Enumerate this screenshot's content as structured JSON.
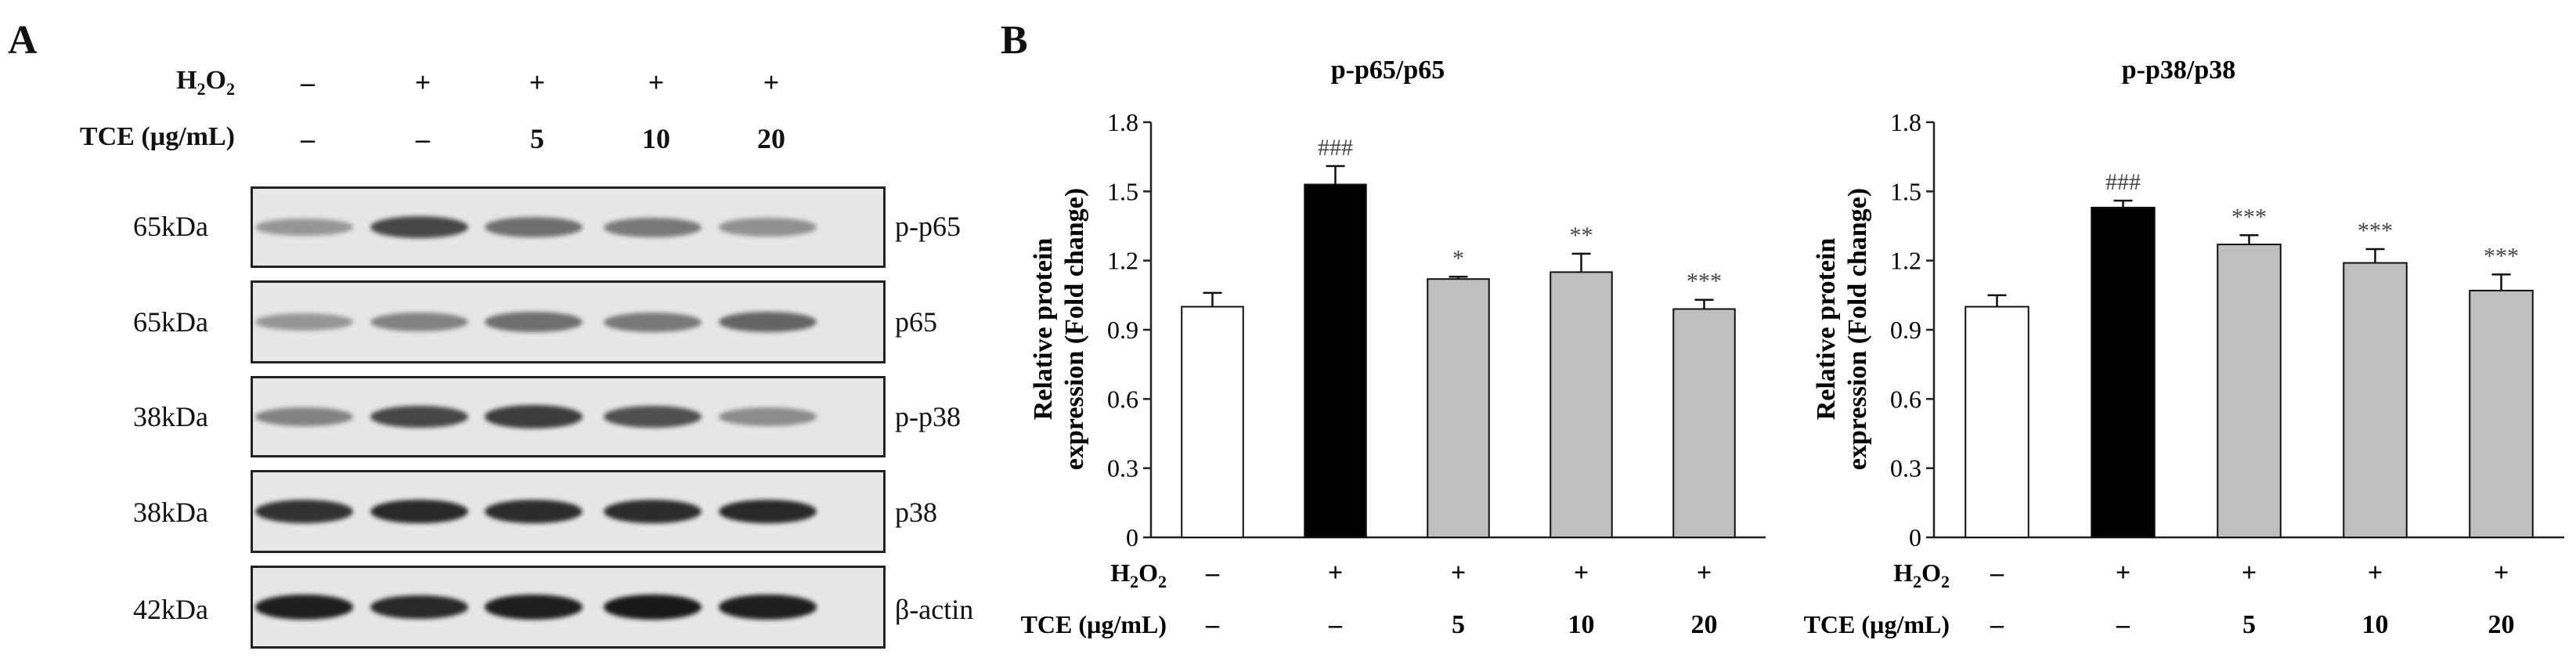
{
  "panel_a": {
    "letter": "A",
    "header_rows": [
      {
        "label": "H₂O₂",
        "label_main": "H",
        "label_sub": "2",
        "label_main2": "O",
        "label_sub2": "2",
        "values": [
          "–",
          "+",
          "+",
          "+",
          "+"
        ]
      },
      {
        "label": "TCE (µg/mL)",
        "values": [
          "–",
          "–",
          "5",
          "10",
          "20"
        ]
      }
    ],
    "blots": [
      {
        "kda": "65kDa",
        "protein": "p-p65",
        "band_intensity": [
          0.35,
          0.75,
          0.55,
          0.5,
          0.38
        ]
      },
      {
        "kda": "65kDa",
        "protein": "p65",
        "band_intensity": [
          0.35,
          0.45,
          0.55,
          0.5,
          0.6
        ]
      },
      {
        "kda": "38kDa",
        "protein": "p-p38",
        "band_intensity": [
          0.45,
          0.75,
          0.8,
          0.7,
          0.4
        ]
      },
      {
        "kda": "38kDa",
        "protein": "p38",
        "band_intensity": [
          0.85,
          0.9,
          0.88,
          0.88,
          0.9
        ]
      },
      {
        "kda": "42kDa",
        "protein": "β-actin",
        "band_intensity": [
          0.95,
          0.9,
          0.95,
          0.98,
          0.95
        ]
      }
    ]
  },
  "panel_b": {
    "letter": "B"
  },
  "chart_data": [
    {
      "type": "bar",
      "title": "p-p65/p65",
      "ylabel_line1": "Relative protein",
      "ylabel_line2": "expression (Fold change)",
      "ylim": [
        0,
        1.8
      ],
      "yticks": [
        "0",
        "0.3",
        "0.6",
        "0.9",
        "1.2",
        "1.5",
        "1.8"
      ],
      "values": [
        1.0,
        1.53,
        1.12,
        1.15,
        0.99
      ],
      "errors": [
        0.06,
        0.08,
        0.01,
        0.08,
        0.04
      ],
      "bar_colors": [
        "#ffffff",
        "#000000",
        "#bfbfbf",
        "#bfbfbf",
        "#bfbfbf"
      ],
      "annotations": [
        "",
        "###",
        "*",
        "**",
        "***"
      ],
      "row_labels": [
        "H₂O₂",
        "TCE (µg/mL)"
      ],
      "h2o2": [
        "–",
        "+",
        "+",
        "+",
        "+"
      ],
      "tce": [
        "–",
        "–",
        "5",
        "10",
        "20"
      ]
    },
    {
      "type": "bar",
      "title": "p-p38/p38",
      "ylabel_line1": "Relative protein",
      "ylabel_line2": "expression (Fold change)",
      "ylim": [
        0,
        1.8
      ],
      "yticks": [
        "0",
        "0.3",
        "0.6",
        "0.9",
        "1.2",
        "1.5",
        "1.8"
      ],
      "values": [
        1.0,
        1.43,
        1.27,
        1.19,
        1.07
      ],
      "errors": [
        0.05,
        0.03,
        0.04,
        0.06,
        0.07
      ],
      "bar_colors": [
        "#ffffff",
        "#000000",
        "#bfbfbf",
        "#bfbfbf",
        "#bfbfbf"
      ],
      "annotations": [
        "",
        "###",
        "***",
        "***",
        "***"
      ],
      "row_labels": [
        "H₂O₂",
        "TCE (µg/mL)"
      ],
      "h2o2": [
        "–",
        "+",
        "+",
        "+",
        "+"
      ],
      "tce": [
        "–",
        "–",
        "5",
        "10",
        "20"
      ]
    }
  ]
}
